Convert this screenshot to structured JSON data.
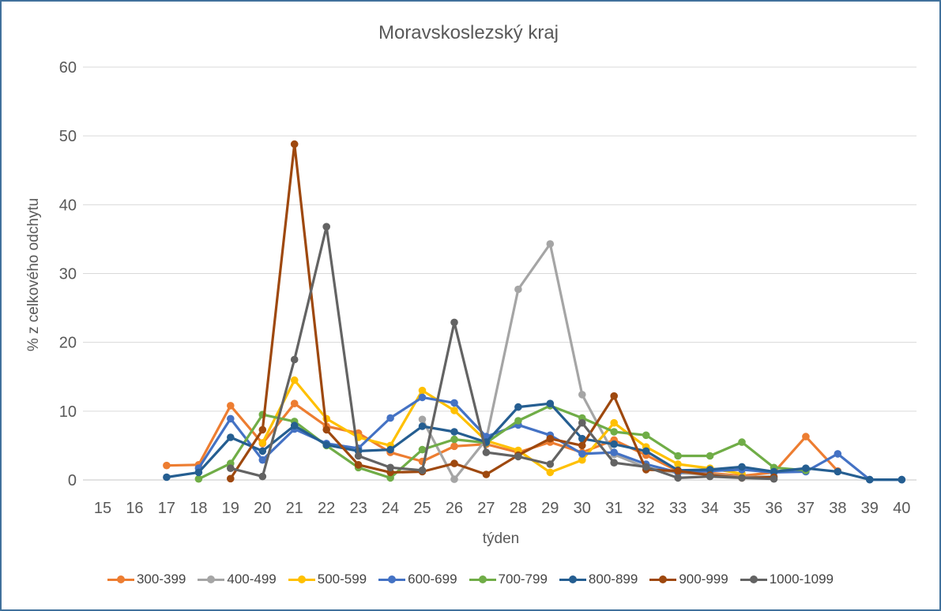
{
  "chart_data": {
    "type": "line",
    "title": "Moravskoslezský kraj",
    "xlabel": "týden",
    "ylabel": "% z celkového odchytu",
    "ylim": [
      0,
      60
    ],
    "ytick_step": 10,
    "grid": "horizontal",
    "legend_position": "bottom",
    "x": [
      15,
      16,
      17,
      18,
      19,
      20,
      21,
      22,
      23,
      24,
      25,
      26,
      27,
      28,
      29,
      30,
      31,
      32,
      33,
      34,
      35,
      36,
      37,
      38,
      39,
      40
    ],
    "series": [
      {
        "name": "300-399",
        "color": "#ED7D31",
        "values": [
          null,
          null,
          2.1,
          2.2,
          10.8,
          5.3,
          11.1,
          7.8,
          6.8,
          4.0,
          2.7,
          4.9,
          5.2,
          4.0,
          5.5,
          4.0,
          5.8,
          3.6,
          1.3,
          1.0,
          0.6,
          1.1,
          6.3,
          1.3,
          null,
          null
        ]
      },
      {
        "name": "400-499",
        "color": "#A5A5A5",
        "values": [
          null,
          null,
          null,
          null,
          null,
          null,
          null,
          null,
          null,
          null,
          8.8,
          0.1,
          5.9,
          27.7,
          34.3,
          12.4,
          3.7,
          1.8,
          1.0,
          0.8,
          0.4,
          0.5,
          null,
          null,
          null,
          null
        ]
      },
      {
        "name": "500-599",
        "color": "#FFC000",
        "values": [
          null,
          null,
          null,
          null,
          null,
          5.4,
          14.5,
          8.9,
          6.2,
          5.0,
          13.0,
          10.1,
          5.7,
          4.3,
          1.1,
          2.9,
          8.3,
          4.8,
          2.3,
          1.7,
          0.9,
          null,
          null,
          null,
          null,
          null
        ]
      },
      {
        "name": "600-699",
        "color": "#4472C4",
        "values": [
          null,
          null,
          null,
          1.7,
          8.9,
          2.9,
          7.4,
          5.3,
          4.6,
          9.0,
          12.0,
          11.2,
          6.3,
          8.0,
          6.5,
          3.8,
          4.0,
          2.3,
          1.1,
          1.3,
          1.5,
          1.1,
          1.2,
          3.8,
          0.05,
          0.05
        ]
      },
      {
        "name": "700-799",
        "color": "#70AD47",
        "values": [
          null,
          null,
          null,
          0.15,
          2.4,
          9.5,
          8.5,
          5.0,
          1.8,
          0.3,
          4.4,
          5.9,
          5.4,
          8.6,
          10.8,
          9.0,
          7.0,
          6.5,
          3.5,
          3.5,
          5.5,
          1.8,
          1.4,
          null,
          null,
          null
        ]
      },
      {
        "name": "800-899",
        "color": "#255E91",
        "values": [
          null,
          null,
          0.4,
          1.1,
          6.2,
          4.2,
          7.9,
          5.1,
          4.2,
          4.4,
          7.8,
          7.0,
          5.5,
          10.6,
          11.1,
          6.0,
          5.2,
          4.2,
          1.4,
          1.5,
          1.9,
          1.2,
          1.7,
          1.2,
          0.05,
          0.05
        ]
      },
      {
        "name": "900-999",
        "color": "#9E480E",
        "values": [
          null,
          null,
          null,
          null,
          0.2,
          7.3,
          48.8,
          7.3,
          2.2,
          1.1,
          1.2,
          2.4,
          0.8,
          3.6,
          6.0,
          5.0,
          12.2,
          1.5,
          1.3,
          0.7,
          0.3,
          0.4,
          null,
          null,
          null,
          null
        ]
      },
      {
        "name": "1000-1099",
        "color": "#636363",
        "values": [
          null,
          null,
          null,
          null,
          1.7,
          0.5,
          17.5,
          36.8,
          3.5,
          1.8,
          1.4,
          22.9,
          4.0,
          3.4,
          2.3,
          8.3,
          2.5,
          1.9,
          0.3,
          0.5,
          0.3,
          0.15,
          null,
          null,
          null,
          null
        ]
      }
    ]
  },
  "style_colors": {
    "axis_text": "#595959",
    "title_text": "#595959",
    "legend_text": "#444444",
    "gridline": "#D9D9D9",
    "frame_border": "#41719C"
  }
}
